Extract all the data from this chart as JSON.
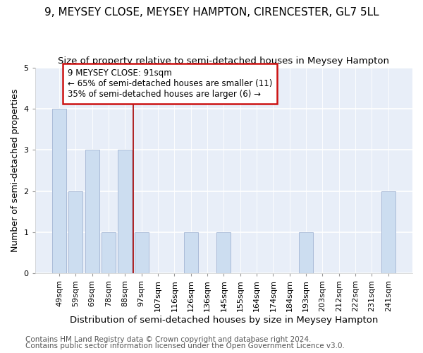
{
  "title": "9, MEYSEY CLOSE, MEYSEY HAMPTON, CIRENCESTER, GL7 5LL",
  "subtitle": "Size of property relative to semi-detached houses in Meysey Hampton",
  "xlabel": "Distribution of semi-detached houses by size in Meysey Hampton",
  "ylabel": "Number of semi-detached properties",
  "footnote1": "Contains HM Land Registry data © Crown copyright and database right 2024.",
  "footnote2": "Contains public sector information licensed under the Open Government Licence v3.0.",
  "annotation_line1": "9 MEYSEY CLOSE: 91sqm",
  "annotation_line2": "← 65% of semi-detached houses are smaller (11)",
  "annotation_line3": "35% of semi-detached houses are larger (6) →",
  "categories": [
    "49sqm",
    "59sqm",
    "69sqm",
    "78sqm",
    "88sqm",
    "97sqm",
    "107sqm",
    "116sqm",
    "126sqm",
    "136sqm",
    "145sqm",
    "155sqm",
    "164sqm",
    "174sqm",
    "184sqm",
    "193sqm",
    "203sqm",
    "212sqm",
    "222sqm",
    "231sqm",
    "241sqm"
  ],
  "values": [
    4,
    2,
    3,
    1,
    3,
    1,
    0,
    0,
    1,
    0,
    1,
    0,
    0,
    0,
    0,
    1,
    0,
    0,
    0,
    0,
    2
  ],
  "bar_color": "#ccddf0",
  "bar_edge_color": "#aabbd8",
  "vline_x_index": 4.5,
  "vline_color": "#aa1111",
  "ylim": [
    0,
    5
  ],
  "yticks": [
    0,
    1,
    2,
    3,
    4,
    5
  ],
  "background_color": "#ffffff",
  "plot_bg_color": "#e8eef8",
  "grid_color": "#ffffff",
  "title_fontsize": 11,
  "subtitle_fontsize": 9.5,
  "ylabel_fontsize": 9,
  "xlabel_fontsize": 9.5,
  "tick_fontsize": 8,
  "annotation_fontsize": 8.5,
  "footnote_fontsize": 7.5
}
